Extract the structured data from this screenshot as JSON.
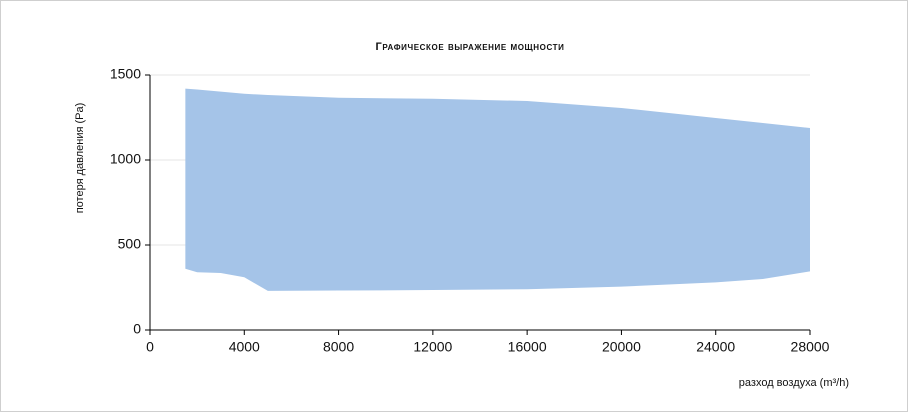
{
  "chart_data": {
    "type": "range-area",
    "title": "Графическое выражение мощности",
    "x_label": "разход воздуха (m³/h)",
    "y_label": "потеря давления (Pa)",
    "x": [
      1500,
      2000,
      3000,
      4000,
      5000,
      8000,
      12000,
      16000,
      20000,
      24000,
      26000,
      28000
    ],
    "high": [
      1420,
      1415,
      1402,
      1390,
      1382,
      1366,
      1360,
      1347,
      1306,
      1247,
      1218,
      1188
    ],
    "low": [
      360,
      340,
      335,
      310,
      230,
      232,
      235,
      240,
      255,
      280,
      300,
      345
    ],
    "color": "#a5c4e8",
    "xlim": [
      0,
      28000
    ],
    "xticks": [
      0,
      4000,
      8000,
      12000,
      16000,
      20000,
      24000,
      28000
    ],
    "ylim": [
      0,
      1500
    ],
    "yticks": [
      0,
      500,
      1000,
      1500
    ],
    "grid": true
  }
}
